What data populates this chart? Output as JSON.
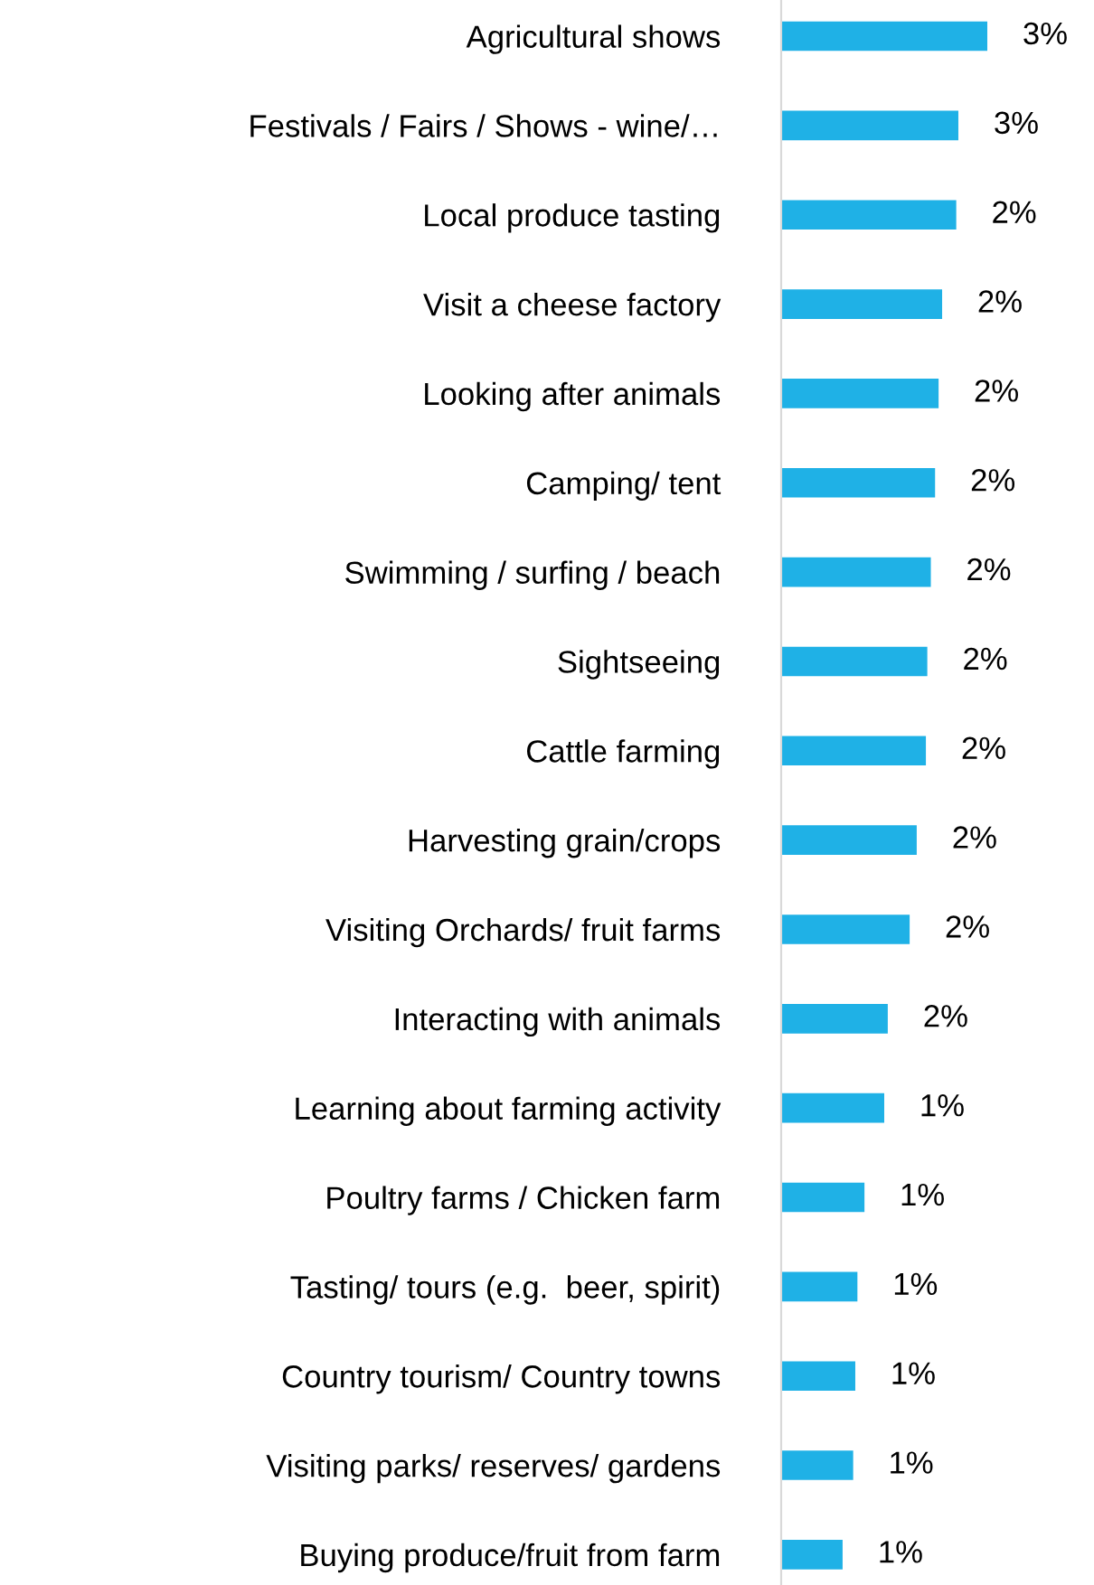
{
  "chart_data": {
    "type": "bar",
    "orientation": "horizontal",
    "categories": [
      "Agricultural shows",
      "Festivals / Fairs / Shows - wine/…",
      "Local produce tasting",
      "Visit a cheese factory",
      "Looking after animals",
      "Camping/ tent",
      "Swimming / surfing / beach",
      "Sightseeing",
      "Cattle farming",
      "Harvesting grain/crops",
      "Visiting Orchards/ fruit farms",
      "Interacting with animals",
      "Learning about farming activity",
      "Poultry farms / Chicken farm",
      "Tasting/ tours (e.g.  beer, spirit)",
      "Country tourism/ Country towns",
      "Visiting parks/ reserves/ gardens",
      "Buying produce/fruit from farm"
    ],
    "values": [
      2.92,
      2.51,
      2.48,
      2.28,
      2.23,
      2.18,
      2.12,
      2.07,
      2.05,
      1.92,
      1.82,
      1.51,
      1.46,
      1.18,
      1.08,
      1.05,
      1.02,
      0.87
    ],
    "value_labels": [
      "3%",
      "3%",
      "2%",
      "2%",
      "2%",
      "2%",
      "2%",
      "2%",
      "2%",
      "2%",
      "2%",
      "2%",
      "1%",
      "1%",
      "1%",
      "1%",
      "1%",
      "1%"
    ],
    "color": "#1fb1e6",
    "grid": false,
    "legend": false
  }
}
